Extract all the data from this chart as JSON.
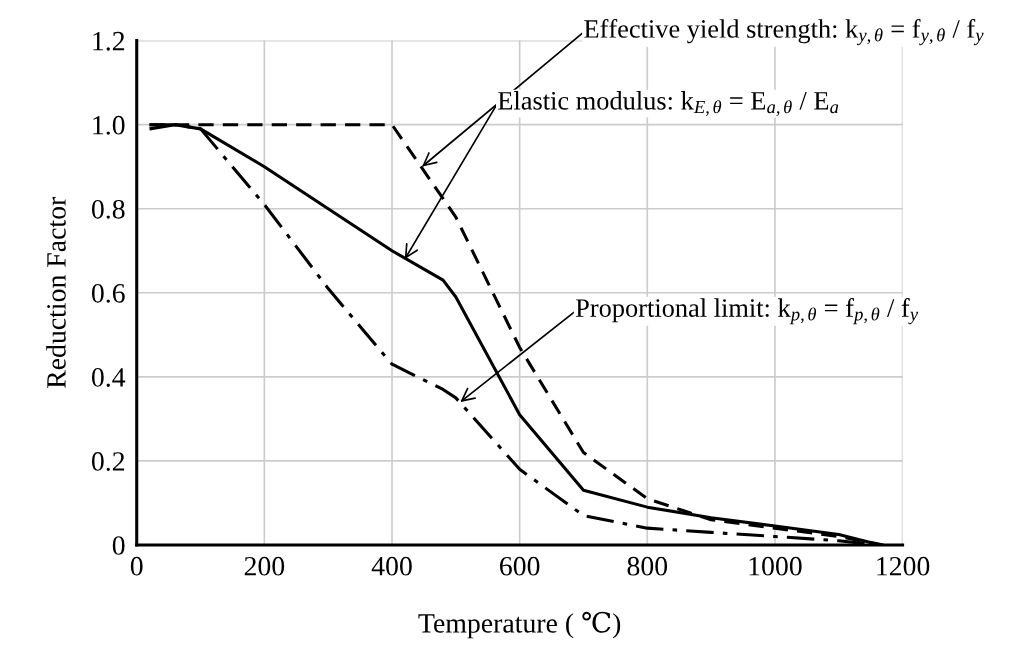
{
  "chart_data": {
    "type": "line",
    "xlabel": "Temperature ( ℃)",
    "ylabel": "Reduction Factor",
    "xlim": [
      0,
      1200
    ],
    "xticks": [
      0,
      200,
      400,
      600,
      800,
      1000,
      1200
    ],
    "ylim": [
      0,
      1.2
    ],
    "yticks": [
      0,
      {
        "value": 0.2,
        "label": "0.2"
      },
      {
        "value": 0.4,
        "label": "0.4"
      },
      {
        "value": 0.6,
        "label": "0.6"
      },
      {
        "value": 0.8,
        "label": "0.8"
      },
      {
        "value": 1.0,
        "label": "1.0"
      },
      {
        "value": 1.2,
        "label": "1.2"
      }
    ],
    "grid": true,
    "legend": false,
    "marker": "none",
    "series": [
      {
        "color": "#000000",
        "line_style": "dashed",
        "x": [
          20,
          100,
          200,
          300,
          400,
          500,
          600,
          700,
          800,
          900,
          1000,
          1100,
          1170
        ],
        "values": [
          1.0,
          1.0,
          1.0,
          1.0,
          1.0,
          0.78,
          0.47,
          0.22,
          0.11,
          0.06,
          0.04,
          0.02,
          0.0
        ]
      },
      {
        "color": "#000000",
        "line_style": "solid",
        "x": [
          20,
          60,
          100,
          200,
          300,
          400,
          480,
          500,
          600,
          700,
          800,
          900,
          1000,
          1100,
          1165
        ],
        "values": [
          0.99,
          1.0,
          0.99,
          0.9,
          0.8,
          0.7,
          0.63,
          0.59,
          0.31,
          0.13,
          0.09,
          0.065,
          0.045,
          0.025,
          0.0
        ]
      },
      {
        "color": "#000000",
        "line_style": "dashdot",
        "x": [
          20,
          60,
          100,
          200,
          300,
          400,
          480,
          500,
          600,
          700,
          800,
          900,
          1000,
          1100,
          1160
        ],
        "values": [
          1.0,
          1.0,
          0.99,
          0.81,
          0.61,
          0.43,
          0.37,
          0.35,
          0.18,
          0.07,
          0.04,
          0.03,
          0.02,
          0.01,
          0.0
        ]
      }
    ],
    "annotations": [
      {
        "text": "Effective yield strength: k$_{y,θ}$ = f$_{y,θ}$ / f$_{y}$",
        "x": 447,
        "y": 0.9
      },
      {
        "text": "Elastic modulus: k$_{E,θ}$ = E$_{a,θ}$ / E$_{a}$",
        "x": 420,
        "y": 0.68
      },
      {
        "text": "Proportional limit: k$_{p,θ}$ = f$_{p,θ}$ / f$_{y}$",
        "x": 507,
        "y": 0.34
      }
    ]
  }
}
